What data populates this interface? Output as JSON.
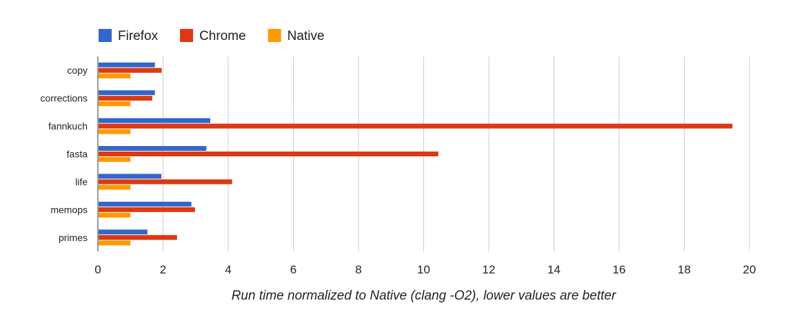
{
  "chart_data": {
    "type": "bar",
    "orientation": "horizontal",
    "categories": [
      "copy",
      "corrections",
      "fannkuch",
      "fasta",
      "life",
      "memops",
      "primes"
    ],
    "series": [
      {
        "name": "Firefox",
        "color": "#3366cc",
        "values": [
          1.75,
          1.75,
          3.45,
          3.33,
          1.95,
          2.87,
          1.52
        ]
      },
      {
        "name": "Chrome",
        "color": "#dc3912",
        "values": [
          1.96,
          1.67,
          19.48,
          10.45,
          4.12,
          2.98,
          2.43
        ]
      },
      {
        "name": "Native",
        "color": "#ff9900",
        "values": [
          1.0,
          1.0,
          1.0,
          1.0,
          1.0,
          1.0,
          1.0
        ]
      }
    ],
    "xlabel": "Run time normalized to Native (clang -O2), lower values are better",
    "ylabel": "",
    "xlim": [
      0,
      20
    ],
    "xticks": [
      "0",
      "2",
      "4",
      "6",
      "8",
      "10",
      "12",
      "14",
      "16",
      "18",
      "20"
    ],
    "grid": true,
    "legend_position": "top-left"
  }
}
